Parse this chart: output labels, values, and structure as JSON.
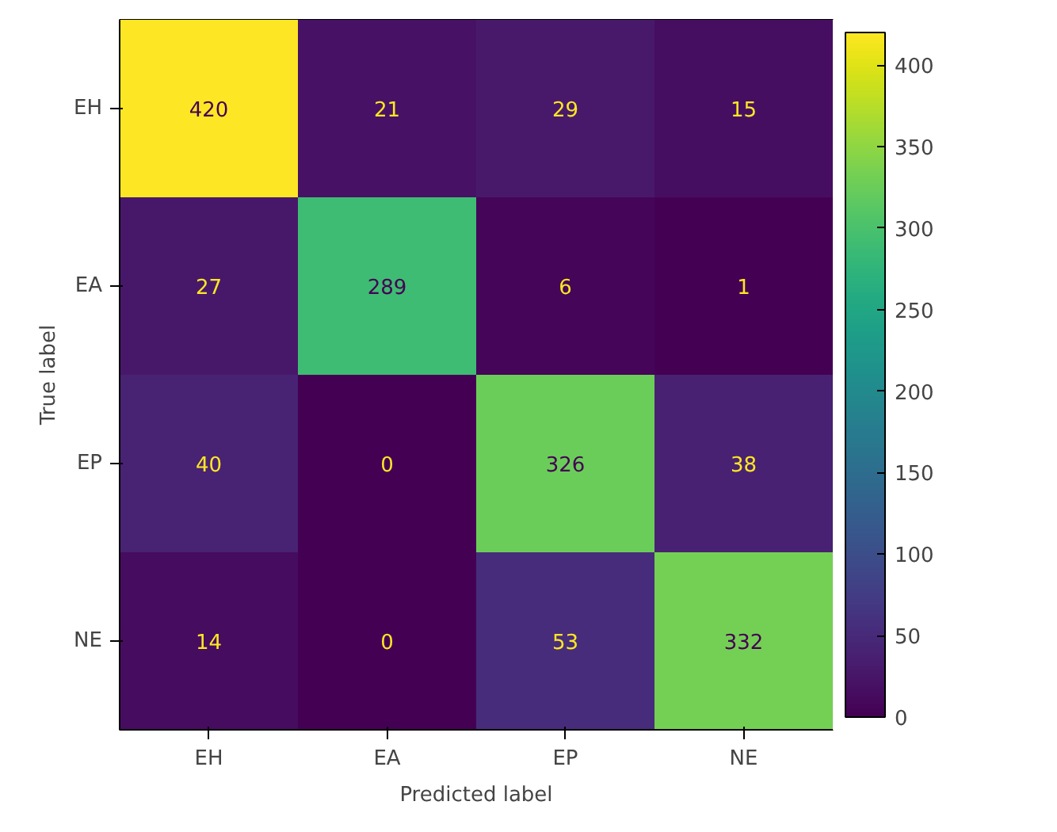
{
  "chart_data": {
    "type": "heatmap",
    "xlabel": "Predicted label",
    "ylabel": "True label",
    "categories": [
      "EH",
      "EA",
      "EP",
      "NE"
    ],
    "y_categories": [
      "EH",
      "EA",
      "EP",
      "NE"
    ],
    "cells": [
      [
        420,
        21,
        29,
        15
      ],
      [
        27,
        289,
        6,
        1
      ],
      [
        40,
        0,
        326,
        38
      ],
      [
        14,
        0,
        53,
        332
      ]
    ],
    "data_labels": true,
    "clim": [
      0,
      420
    ],
    "cticks": [
      0,
      50,
      100,
      150,
      200,
      250,
      300,
      350,
      400
    ]
  }
}
